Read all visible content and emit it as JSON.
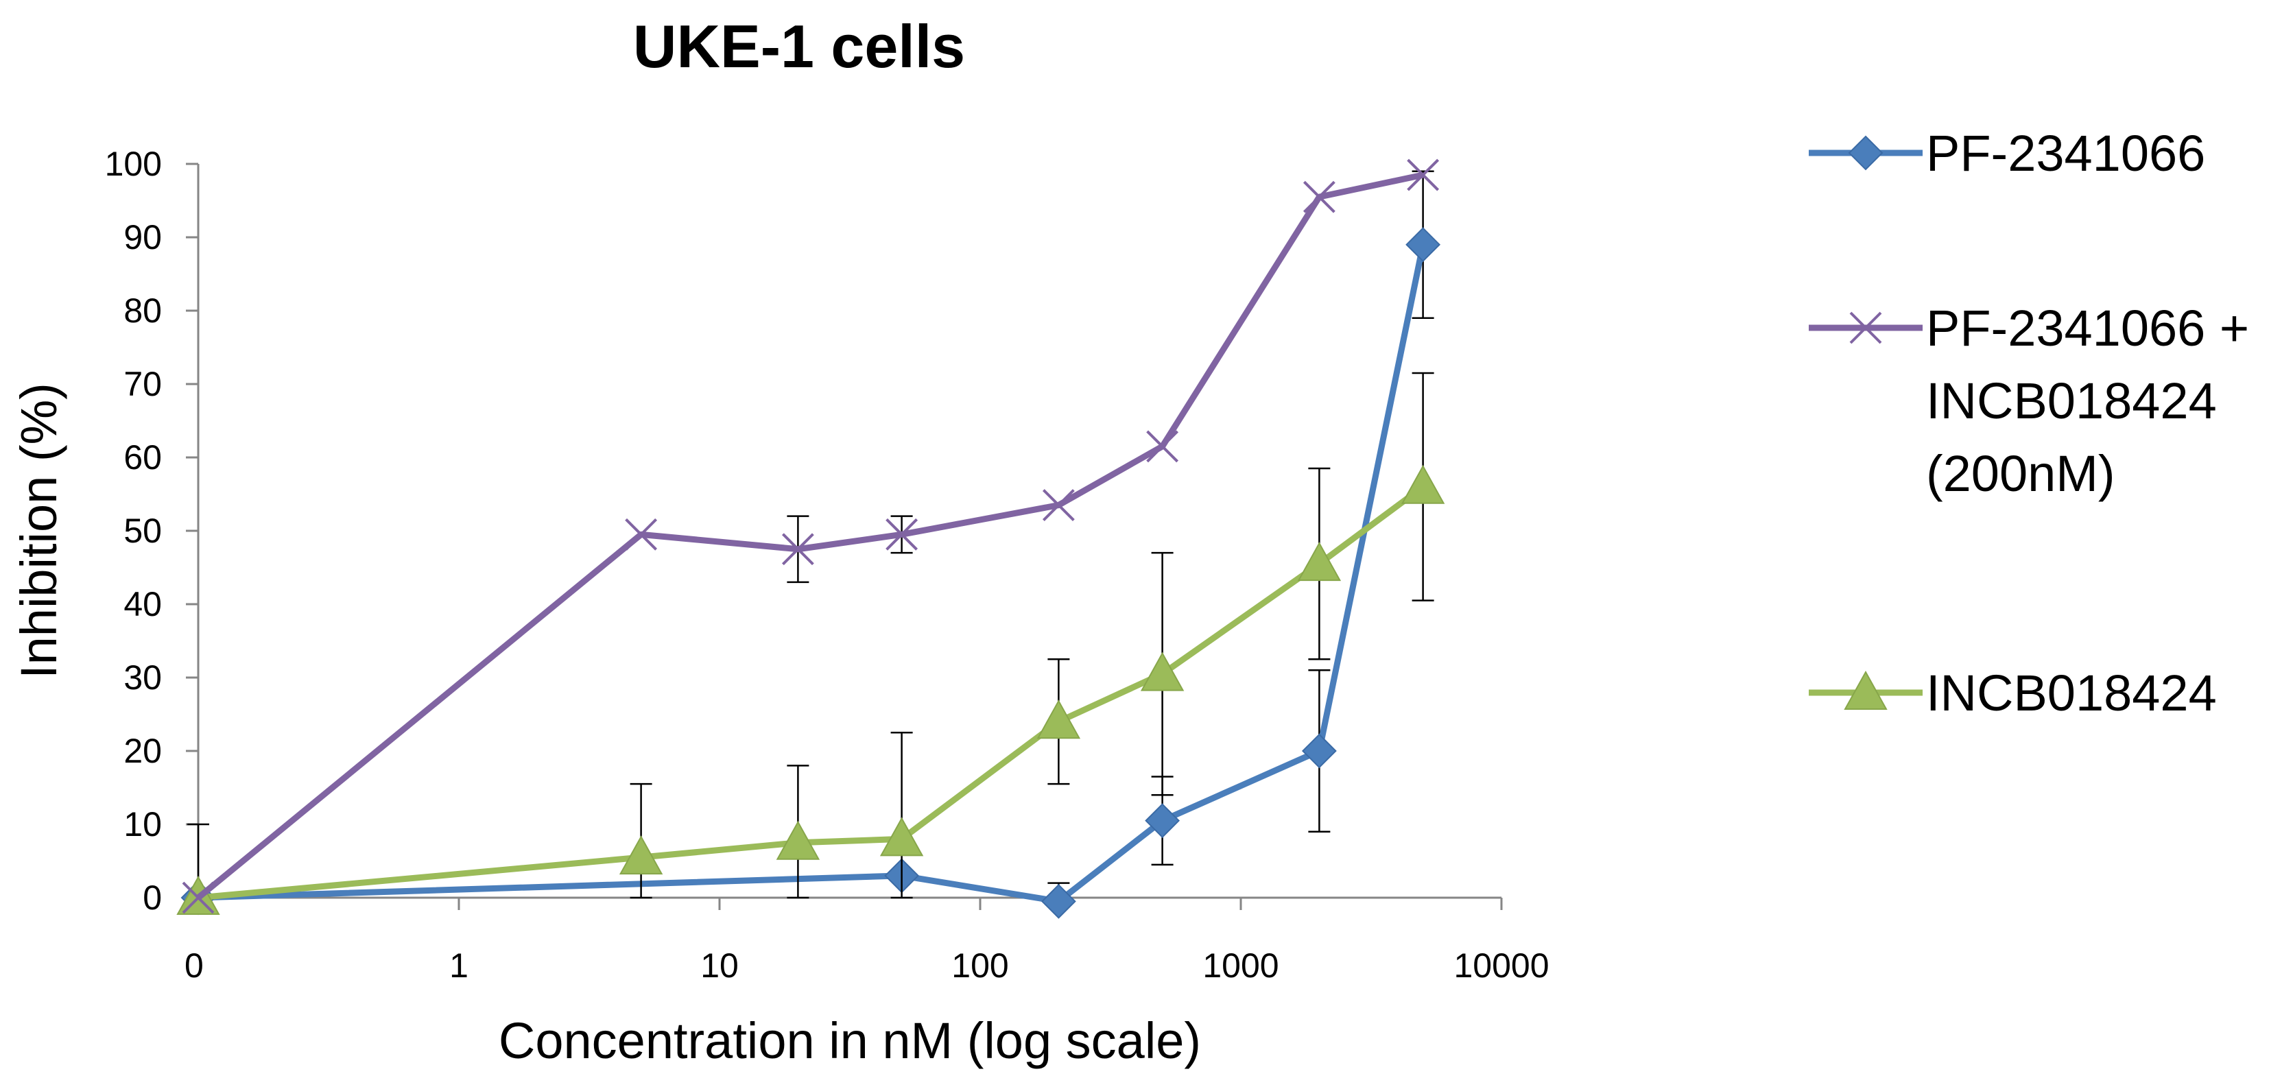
{
  "chart_data": {
    "type": "line",
    "title": "UKE-1 cells",
    "xlabel": "Concentration in nM (log scale)",
    "ylabel": "Inhibition (%)",
    "xscale": "log",
    "xlim": [
      0.1,
      10000
    ],
    "ylim": [
      0,
      100
    ],
    "x_ticks": [
      0.1,
      1,
      10,
      100,
      1000,
      10000
    ],
    "x_tick_labels": [
      "0",
      "1",
      "10",
      "100",
      "1000",
      "10000"
    ],
    "y_ticks": [
      0,
      10,
      20,
      30,
      40,
      50,
      60,
      70,
      80,
      90,
      100
    ],
    "y_tick_labels": [
      "0",
      "10",
      "20",
      "30",
      "40",
      "50",
      "60",
      "70",
      "80",
      "90",
      "100"
    ],
    "grid": false,
    "legend_position": "right",
    "series": [
      {
        "name": "PF-2341066",
        "legend_lines": [
          "PF-2341066"
        ],
        "color": "#4a7ebb",
        "marker": "diamond",
        "x": [
          0.1,
          50,
          200,
          500,
          2000,
          5000
        ],
        "y": [
          0,
          3,
          -0.5,
          10.5,
          20,
          89
        ],
        "yerr": [
          null,
          null,
          2.5,
          6,
          11,
          10
        ]
      },
      {
        "name": "PF-2341066 + INCB018424 (200nM)",
        "legend_lines": [
          "PF-2341066 +",
          "INCB018424",
          "(200nM)"
        ],
        "color": "#8064a2",
        "marker": "x",
        "x": [
          0.1,
          5,
          20,
          50,
          200,
          500,
          2000,
          5000
        ],
        "y": [
          0,
          49.5,
          47.5,
          49.5,
          53.5,
          61.5,
          95.5,
          98.5
        ],
        "yerr": [
          null,
          null,
          4.5,
          2.5,
          null,
          null,
          null,
          null
        ]
      },
      {
        "name": "INCB018424",
        "legend_lines": [
          "INCB018424"
        ],
        "color": "#9bbb59",
        "marker": "triangle",
        "x": [
          0.1,
          5,
          20,
          50,
          200,
          500,
          2000,
          5000
        ],
        "y": [
          0,
          5.5,
          7.5,
          8,
          24,
          30.5,
          45.5,
          56
        ],
        "yerr": [
          10,
          10,
          10.5,
          14.5,
          8.5,
          16.5,
          13,
          15.5
        ]
      }
    ]
  }
}
